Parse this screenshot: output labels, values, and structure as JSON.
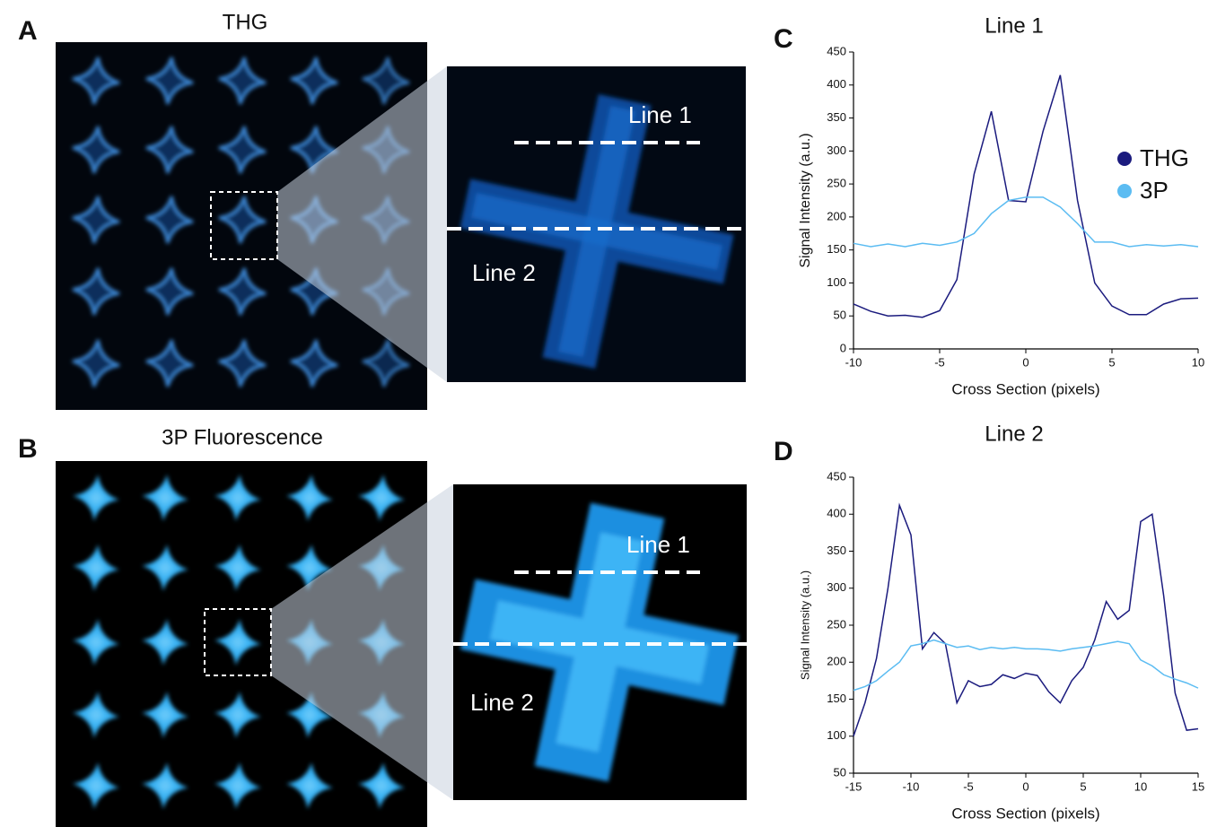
{
  "panels": [
    {
      "letter": "A",
      "title": "THG",
      "line_labels": [
        "Line 1",
        "Line 2"
      ]
    },
    {
      "letter": "B",
      "title": "3P Fluorescence",
      "line_labels": [
        "Line 1",
        "Line 2"
      ]
    }
  ],
  "chart_data": [
    {
      "type": "line",
      "letter": "C",
      "title": "Line 1",
      "x_label": "Cross Section (pixels)",
      "y_label": "Signal Intensity (a.u.)",
      "x": [
        -10,
        -9,
        -8,
        -7,
        -6,
        -5,
        -4,
        -3,
        -2,
        -1,
        0,
        1,
        2,
        3,
        4,
        5,
        6,
        7,
        8,
        9,
        10
      ],
      "series": [
        {
          "name": "THG",
          "color": "#1b1b7e",
          "values": [
            68,
            57,
            50,
            51,
            48,
            58,
            105,
            265,
            360,
            225,
            223,
            330,
            415,
            225,
            100,
            65,
            52,
            52,
            68,
            76,
            77
          ]
        },
        {
          "name": "3P",
          "color": "#5bbcf2",
          "values": [
            160,
            155,
            159,
            155,
            160,
            157,
            162,
            175,
            205,
            225,
            230,
            230,
            215,
            190,
            162,
            162,
            155,
            158,
            156,
            158,
            155
          ]
        }
      ],
      "xlim": [
        -10,
        10
      ],
      "ylim": [
        0,
        450
      ],
      "xticks": [
        -10,
        -5,
        0,
        5,
        10
      ],
      "yticks": [
        0,
        50,
        100,
        150,
        200,
        250,
        300,
        350,
        400,
        450
      ],
      "legend": "right"
    },
    {
      "type": "line",
      "letter": "D",
      "title": "Line 2",
      "x_label": "Cross Section (pixels)",
      "y_label": "Signal Intensity (a.u.)",
      "x": [
        -15,
        -14,
        -13,
        -12,
        -11,
        -10,
        -9,
        -8,
        -7,
        -6,
        -5,
        -4,
        -3,
        -2,
        -1,
        0,
        1,
        2,
        3,
        4,
        5,
        6,
        7,
        8,
        9,
        10,
        11,
        12,
        13,
        14,
        15
      ],
      "series": [
        {
          "name": "THG",
          "color": "#1b1b7e",
          "values": [
            100,
            145,
            205,
            300,
            412,
            372,
            218,
            240,
            225,
            145,
            175,
            167,
            170,
            183,
            178,
            185,
            182,
            160,
            145,
            175,
            193,
            230,
            282,
            258,
            270,
            390,
            400,
            290,
            158,
            108,
            110
          ]
        },
        {
          "name": "3P",
          "color": "#5bbcf2",
          "values": [
            162,
            167,
            175,
            188,
            200,
            222,
            225,
            230,
            225,
            220,
            222,
            217,
            220,
            218,
            220,
            218,
            218,
            217,
            215,
            218,
            220,
            222,
            225,
            228,
            225,
            203,
            195,
            183,
            177,
            172,
            165
          ]
        }
      ],
      "xlim": [
        -15,
        15
      ],
      "ylim": [
        50,
        450
      ],
      "xticks": [
        -15,
        -10,
        -5,
        0,
        5,
        10,
        15
      ],
      "yticks": [
        50,
        100,
        150,
        200,
        250,
        300,
        350,
        400,
        450
      ]
    }
  ]
}
